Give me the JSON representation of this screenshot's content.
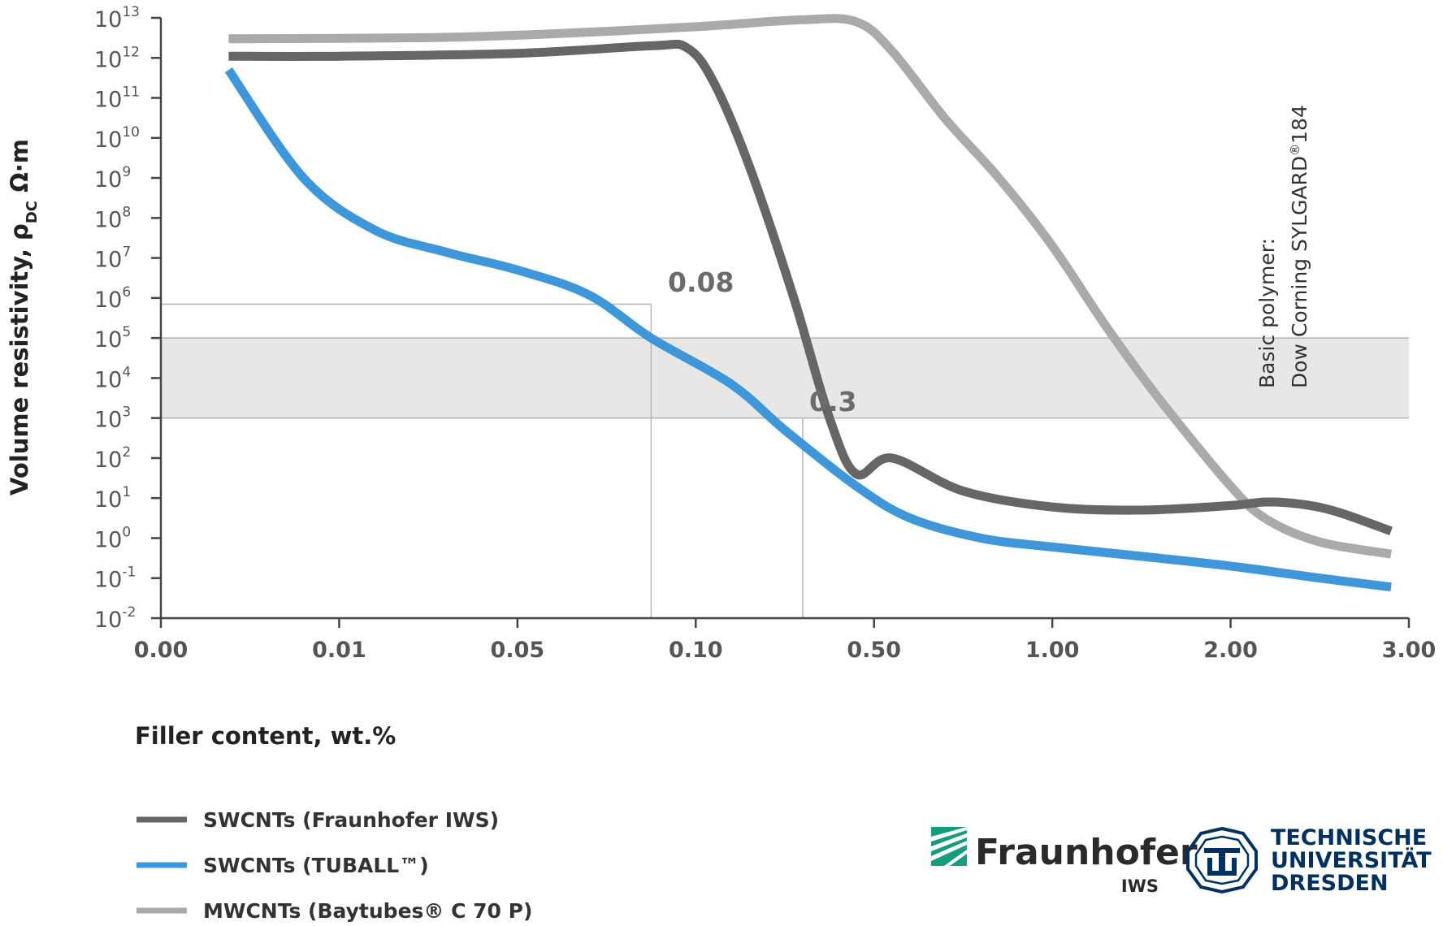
{
  "chart_data": {
    "type": "line",
    "x_axis": {
      "label": "Filler content, wt.%",
      "ticks": [
        "0.00",
        "0.01",
        "0.05",
        "0.10",
        "0.50",
        "1.00",
        "2.00",
        "3.00"
      ],
      "scale": "categorical, evenly spaced"
    },
    "y_axis": {
      "label_main": "Volume resistivity, ρ",
      "label_sub": "DC",
      "label_unit": " Ω·m",
      "scale": "log",
      "range": [
        0.01,
        10000000000000.0
      ],
      "tick_base": "10",
      "tick_exponents": [
        "13",
        "12",
        "11",
        "10",
        "9",
        "8",
        "7",
        "6",
        "5",
        "4",
        "3",
        "2",
        "1",
        "0",
        "-1",
        "-2"
      ]
    },
    "shaded_band": {
      "ymin": 1000.0,
      "ymax": 100000.0
    },
    "series": [
      {
        "name": "SWCNTs (Fraunhofer IWS)",
        "color": "#666666",
        "x_positions": [
          0.38,
          1.0,
          2.0,
          2.75,
          2.95,
          3.1,
          3.3,
          3.55,
          3.75,
          3.9,
          4.1,
          4.5,
          5.0,
          5.5,
          6.0,
          6.2,
          6.4,
          6.6,
          6.9
        ],
        "values": [
          1100000000000.0,
          1100000000000.0,
          1300000000000.0,
          2000000000000.0,
          1800000000000.0,
          250000000000.0,
          2000000000.0,
          1000000.0,
          1000.0,
          40.0,
          100.0,
          15.0,
          6,
          5,
          6.5,
          8,
          7,
          4.5,
          1.5
        ]
      },
      {
        "name": "SWCNTs (TUBALL™)",
        "color": "#3f97d9",
        "x_positions": [
          0.38,
          0.8,
          1.2,
          1.6,
          2.0,
          2.4,
          2.75,
          3.2,
          3.5,
          3.9,
          4.2,
          4.6,
          5.0,
          5.5,
          6.0,
          6.5,
          6.9
        ],
        "values": [
          500000000000.0,
          1000000000.0,
          50000000.0,
          14000000.0,
          5000000.0,
          1200000.0,
          100000.0,
          7000.0,
          500.0,
          20.0,
          3.2,
          1,
          0.6,
          0.35,
          0.2,
          0.1,
          0.06
        ]
      },
      {
        "name": "MWCNTs (Baytubes® C 70 P)",
        "color": "#aaaaaa",
        "x_positions": [
          0.38,
          1.5,
          2.2,
          3.0,
          3.6,
          3.9,
          4.1,
          4.4,
          4.7,
          5.0,
          5.3,
          5.6,
          6.0,
          6.2,
          6.5,
          6.9
        ],
        "values": [
          3000000000000.0,
          3200000000000.0,
          4000000000000.0,
          6000000000000.0,
          9000000000000.0,
          8000000000000.0,
          1500000000000.0,
          30000000000.0,
          1000000000.0,
          20000000.0,
          200000.0,
          3000.0,
          20.0,
          3,
          0.8,
          0.4
        ]
      }
    ],
    "annotations": [
      {
        "text": "0.08",
        "x_position": 2.75,
        "y": 700000.0
      },
      {
        "text": "0.3",
        "x_position": 3.6,
        "y": 1000.0
      }
    ],
    "side_note": {
      "line1": "Basic polymer:",
      "line2": "Dow Corning SYLGARD",
      "reg": "®",
      "line2_end": "184"
    }
  },
  "logos": {
    "fraunhofer": "Fraunhofer",
    "fraunhofer_sub": "IWS",
    "tud_line1": "TECHNISCHE",
    "tud_line2": "UNIVERSITÄT",
    "tud_line3": "DRESDEN"
  }
}
